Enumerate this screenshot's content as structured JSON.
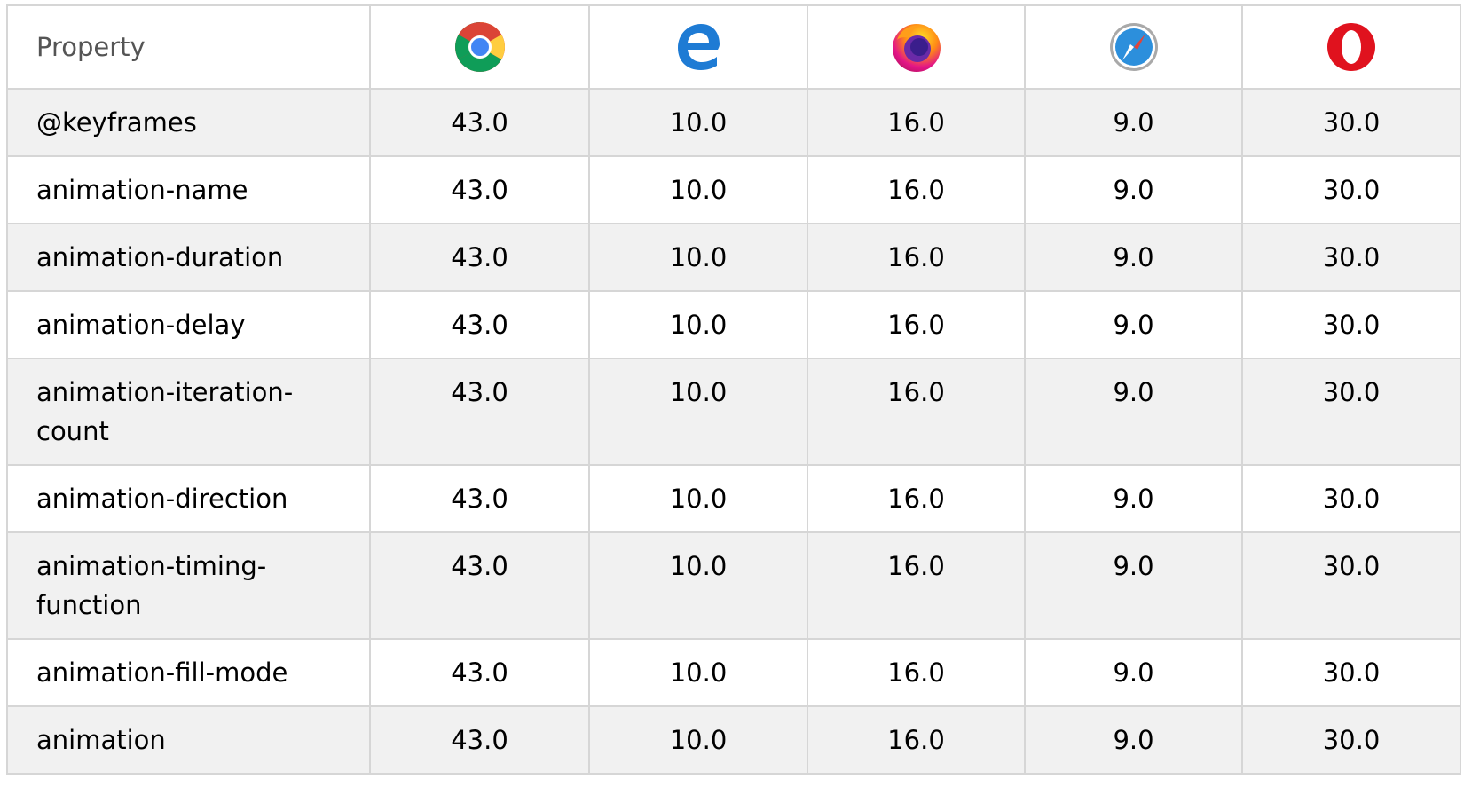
{
  "header": {
    "property_label": "Property",
    "browsers": [
      {
        "icon": "chrome-icon",
        "name": "Chrome"
      },
      {
        "icon": "edge-icon",
        "name": "Edge"
      },
      {
        "icon": "firefox-icon",
        "name": "Firefox"
      },
      {
        "icon": "safari-icon",
        "name": "Safari"
      },
      {
        "icon": "opera-icon",
        "name": "Opera"
      }
    ]
  },
  "rows": [
    {
      "property": "@keyframes",
      "values": [
        "43.0",
        "10.0",
        "16.0",
        "9.0",
        "30.0"
      ]
    },
    {
      "property": "animation-name",
      "values": [
        "43.0",
        "10.0",
        "16.0",
        "9.0",
        "30.0"
      ]
    },
    {
      "property": "animation-duration",
      "values": [
        "43.0",
        "10.0",
        "16.0",
        "9.0",
        "30.0"
      ]
    },
    {
      "property": "animation-delay",
      "values": [
        "43.0",
        "10.0",
        "16.0",
        "9.0",
        "30.0"
      ]
    },
    {
      "property": "animation-iteration-count",
      "values": [
        "43.0",
        "10.0",
        "16.0",
        "9.0",
        "30.0"
      ]
    },
    {
      "property": "animation-direction",
      "values": [
        "43.0",
        "10.0",
        "16.0",
        "9.0",
        "30.0"
      ]
    },
    {
      "property": "animation-timing-function",
      "values": [
        "43.0",
        "10.0",
        "16.0",
        "9.0",
        "30.0"
      ]
    },
    {
      "property": "animation-fill-mode",
      "values": [
        "43.0",
        "10.0",
        "16.0",
        "9.0",
        "30.0"
      ]
    },
    {
      "property": "animation",
      "values": [
        "43.0",
        "10.0",
        "16.0",
        "9.0",
        "30.0"
      ]
    }
  ],
  "colors": {
    "border": "#d6d6d6",
    "row_alt": "#f1f1f1",
    "header_text": "#555555"
  }
}
